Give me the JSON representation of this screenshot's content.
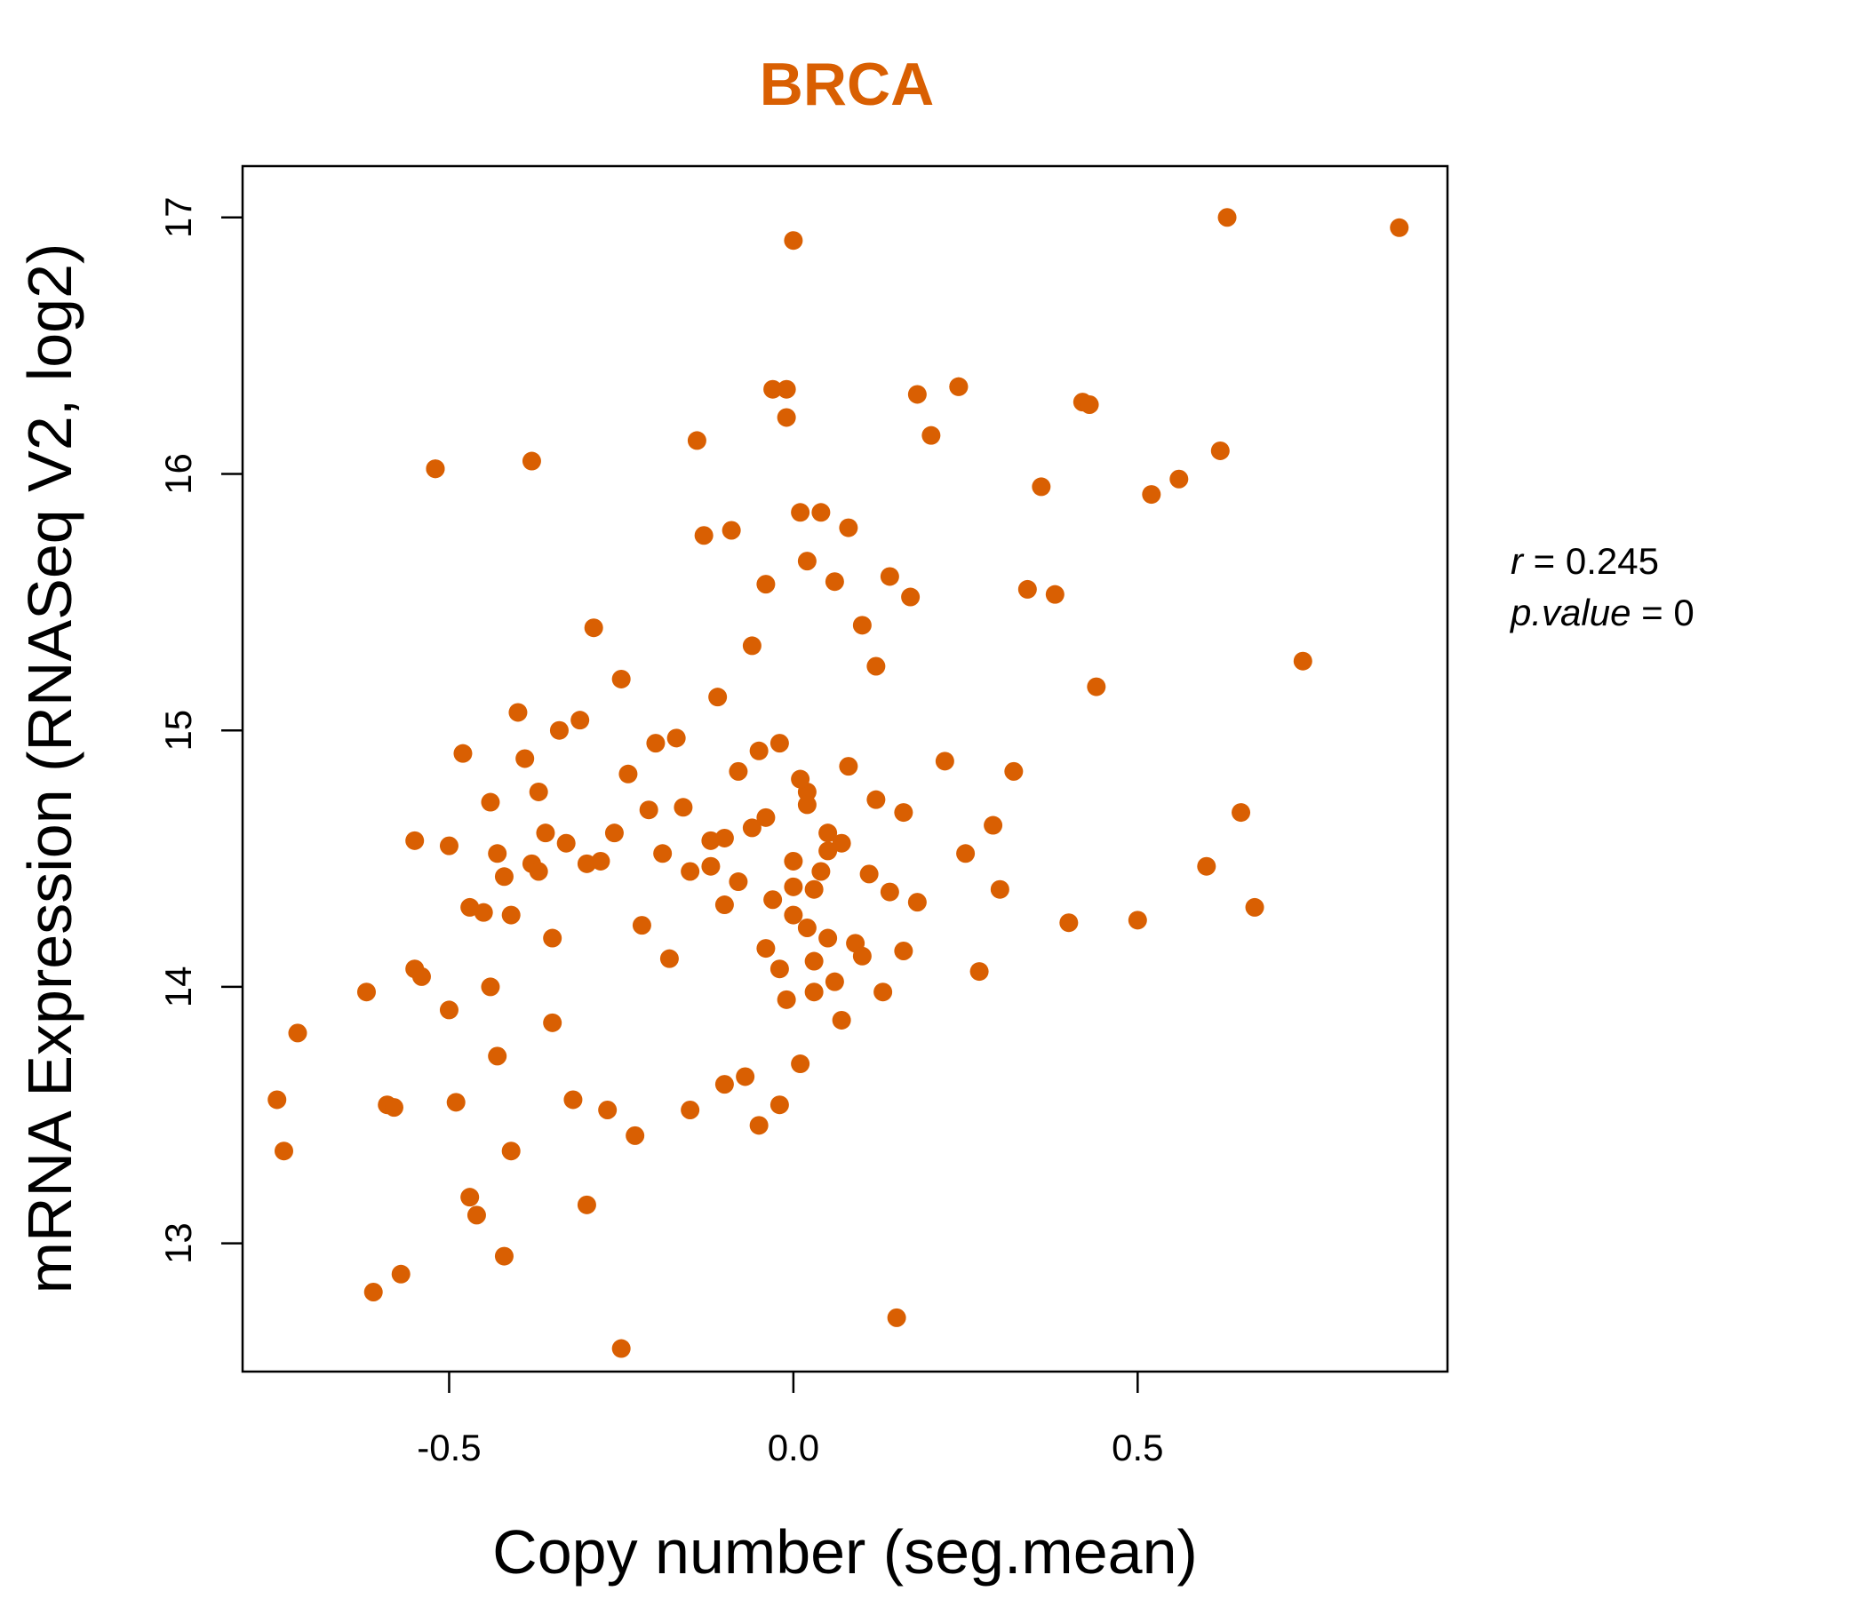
{
  "chart_data": {
    "type": "scatter",
    "title": "BRCA",
    "xlabel": "Copy number (seg.mean)",
    "ylabel": "mRNA Expression (RNASeq V2, log2)",
    "xlim": [
      -0.8,
      0.95
    ],
    "ylim": [
      12.5,
      17.2
    ],
    "x_ticks": [
      -0.5,
      0.0,
      0.5
    ],
    "x_tick_labels": [
      "-0.5",
      "0.0",
      "0.5"
    ],
    "y_ticks": [
      13,
      14,
      15,
      16,
      17
    ],
    "y_tick_labels": [
      "13",
      "14",
      "15",
      "16",
      "17"
    ],
    "grid": false,
    "legend": "none",
    "color": "#D95F02",
    "stats": {
      "r_label": "r",
      "r_value": "0.245",
      "p_label": "p.value",
      "p_value": "0"
    },
    "x": [
      -0.75,
      -0.74,
      -0.72,
      -0.62,
      -0.61,
      -0.59,
      -0.58,
      -0.57,
      -0.55,
      -0.55,
      -0.54,
      -0.52,
      -0.5,
      -0.5,
      -0.49,
      -0.48,
      -0.47,
      -0.47,
      -0.46,
      -0.45,
      -0.44,
      -0.44,
      -0.43,
      -0.43,
      -0.42,
      -0.42,
      -0.41,
      -0.41,
      -0.4,
      -0.39,
      -0.38,
      -0.37,
      -0.37,
      -0.36,
      -0.35,
      -0.35,
      -0.34,
      -0.33,
      -0.32,
      -0.31,
      -0.3,
      -0.3,
      -0.29,
      -0.28,
      -0.27,
      -0.26,
      -0.25,
      -0.25,
      -0.24,
      -0.23,
      -0.22,
      -0.21,
      -0.2,
      -0.19,
      -0.18,
      -0.17,
      -0.16,
      -0.15,
      -0.15,
      -0.14,
      -0.13,
      -0.12,
      -0.11,
      -0.1,
      -0.1,
      -0.09,
      -0.08,
      -0.07,
      -0.06,
      -0.05,
      -0.04,
      -0.04,
      -0.03,
      -0.02,
      -0.02,
      -0.01,
      -0.01,
      0.0,
      0.0,
      0.01,
      0.01,
      0.02,
      0.02,
      0.03,
      0.03,
      0.04,
      0.05,
      0.06,
      0.07,
      0.08,
      0.09,
      0.1,
      0.11,
      0.12,
      0.13,
      0.14,
      0.15,
      0.16,
      0.17,
      0.18,
      0.2,
      0.22,
      0.24,
      0.25,
      0.27,
      0.29,
      0.3,
      0.32,
      0.34,
      0.36,
      0.38,
      0.4,
      0.42,
      0.44,
      0.5,
      0.52,
      0.56,
      0.6,
      0.62,
      0.63,
      0.65,
      0.67,
      0.74,
      0.88,
      -0.01,
      -0.38,
      -0.52,
      0.24,
      0.43,
      0.18,
      -0.06,
      -0.03,
      0.0,
      0.02,
      0.04,
      0.05,
      0.07,
      -0.05,
      -0.02,
      0.01,
      0.03,
      0.06,
      -0.04,
      0.0,
      0.02,
      0.08,
      -0.08,
      0.1,
      0.12,
      -0.1,
      0.14,
      0.16,
      -0.12,
      0.05
    ],
    "y": [
      13.56,
      13.36,
      13.82,
      13.98,
      12.81,
      13.54,
      13.53,
      12.88,
      14.57,
      14.07,
      14.04,
      16.02,
      14.55,
      13.91,
      13.55,
      14.91,
      14.31,
      13.18,
      13.11,
      14.29,
      14.72,
      14.0,
      13.73,
      14.52,
      14.43,
      12.95,
      14.28,
      13.36,
      15.07,
      14.89,
      14.48,
      14.76,
      14.45,
      14.6,
      14.19,
      13.86,
      15.0,
      14.56,
      13.56,
      15.04,
      14.48,
      13.15,
      15.4,
      14.49,
      13.52,
      14.6,
      12.59,
      15.2,
      14.83,
      13.42,
      14.24,
      14.69,
      14.95,
      14.52,
      14.11,
      14.97,
      14.7,
      13.52,
      14.45,
      16.13,
      15.76,
      14.57,
      15.13,
      14.32,
      13.62,
      15.78,
      14.84,
      13.65,
      15.33,
      13.46,
      15.57,
      14.15,
      16.33,
      13.54,
      14.95,
      16.22,
      13.95,
      16.91,
      14.39,
      15.85,
      13.7,
      15.66,
      14.76,
      14.1,
      13.98,
      15.85,
      14.53,
      15.58,
      13.87,
      15.79,
      14.17,
      15.41,
      14.44,
      15.25,
      13.98,
      15.6,
      12.71,
      14.68,
      15.52,
      14.33,
      16.15,
      14.88,
      16.34,
      14.52,
      14.06,
      14.63,
      14.38,
      14.84,
      15.55,
      15.95,
      15.53,
      14.25,
      16.28,
      15.17,
      14.26,
      15.92,
      15.98,
      14.47,
      16.09,
      17.0,
      14.68,
      14.31,
      15.27,
      16.96,
      16.33,
      16.05,
      16.02,
      16.34,
      16.27,
      16.31,
      14.62,
      14.34,
      14.28,
      14.71,
      14.45,
      14.19,
      14.56,
      14.92,
      14.07,
      14.81,
      14.38,
      14.02,
      14.66,
      14.49,
      14.23,
      14.86,
      14.41,
      14.12,
      14.73,
      14.58,
      14.37,
      14.14,
      14.47,
      14.6
    ]
  }
}
